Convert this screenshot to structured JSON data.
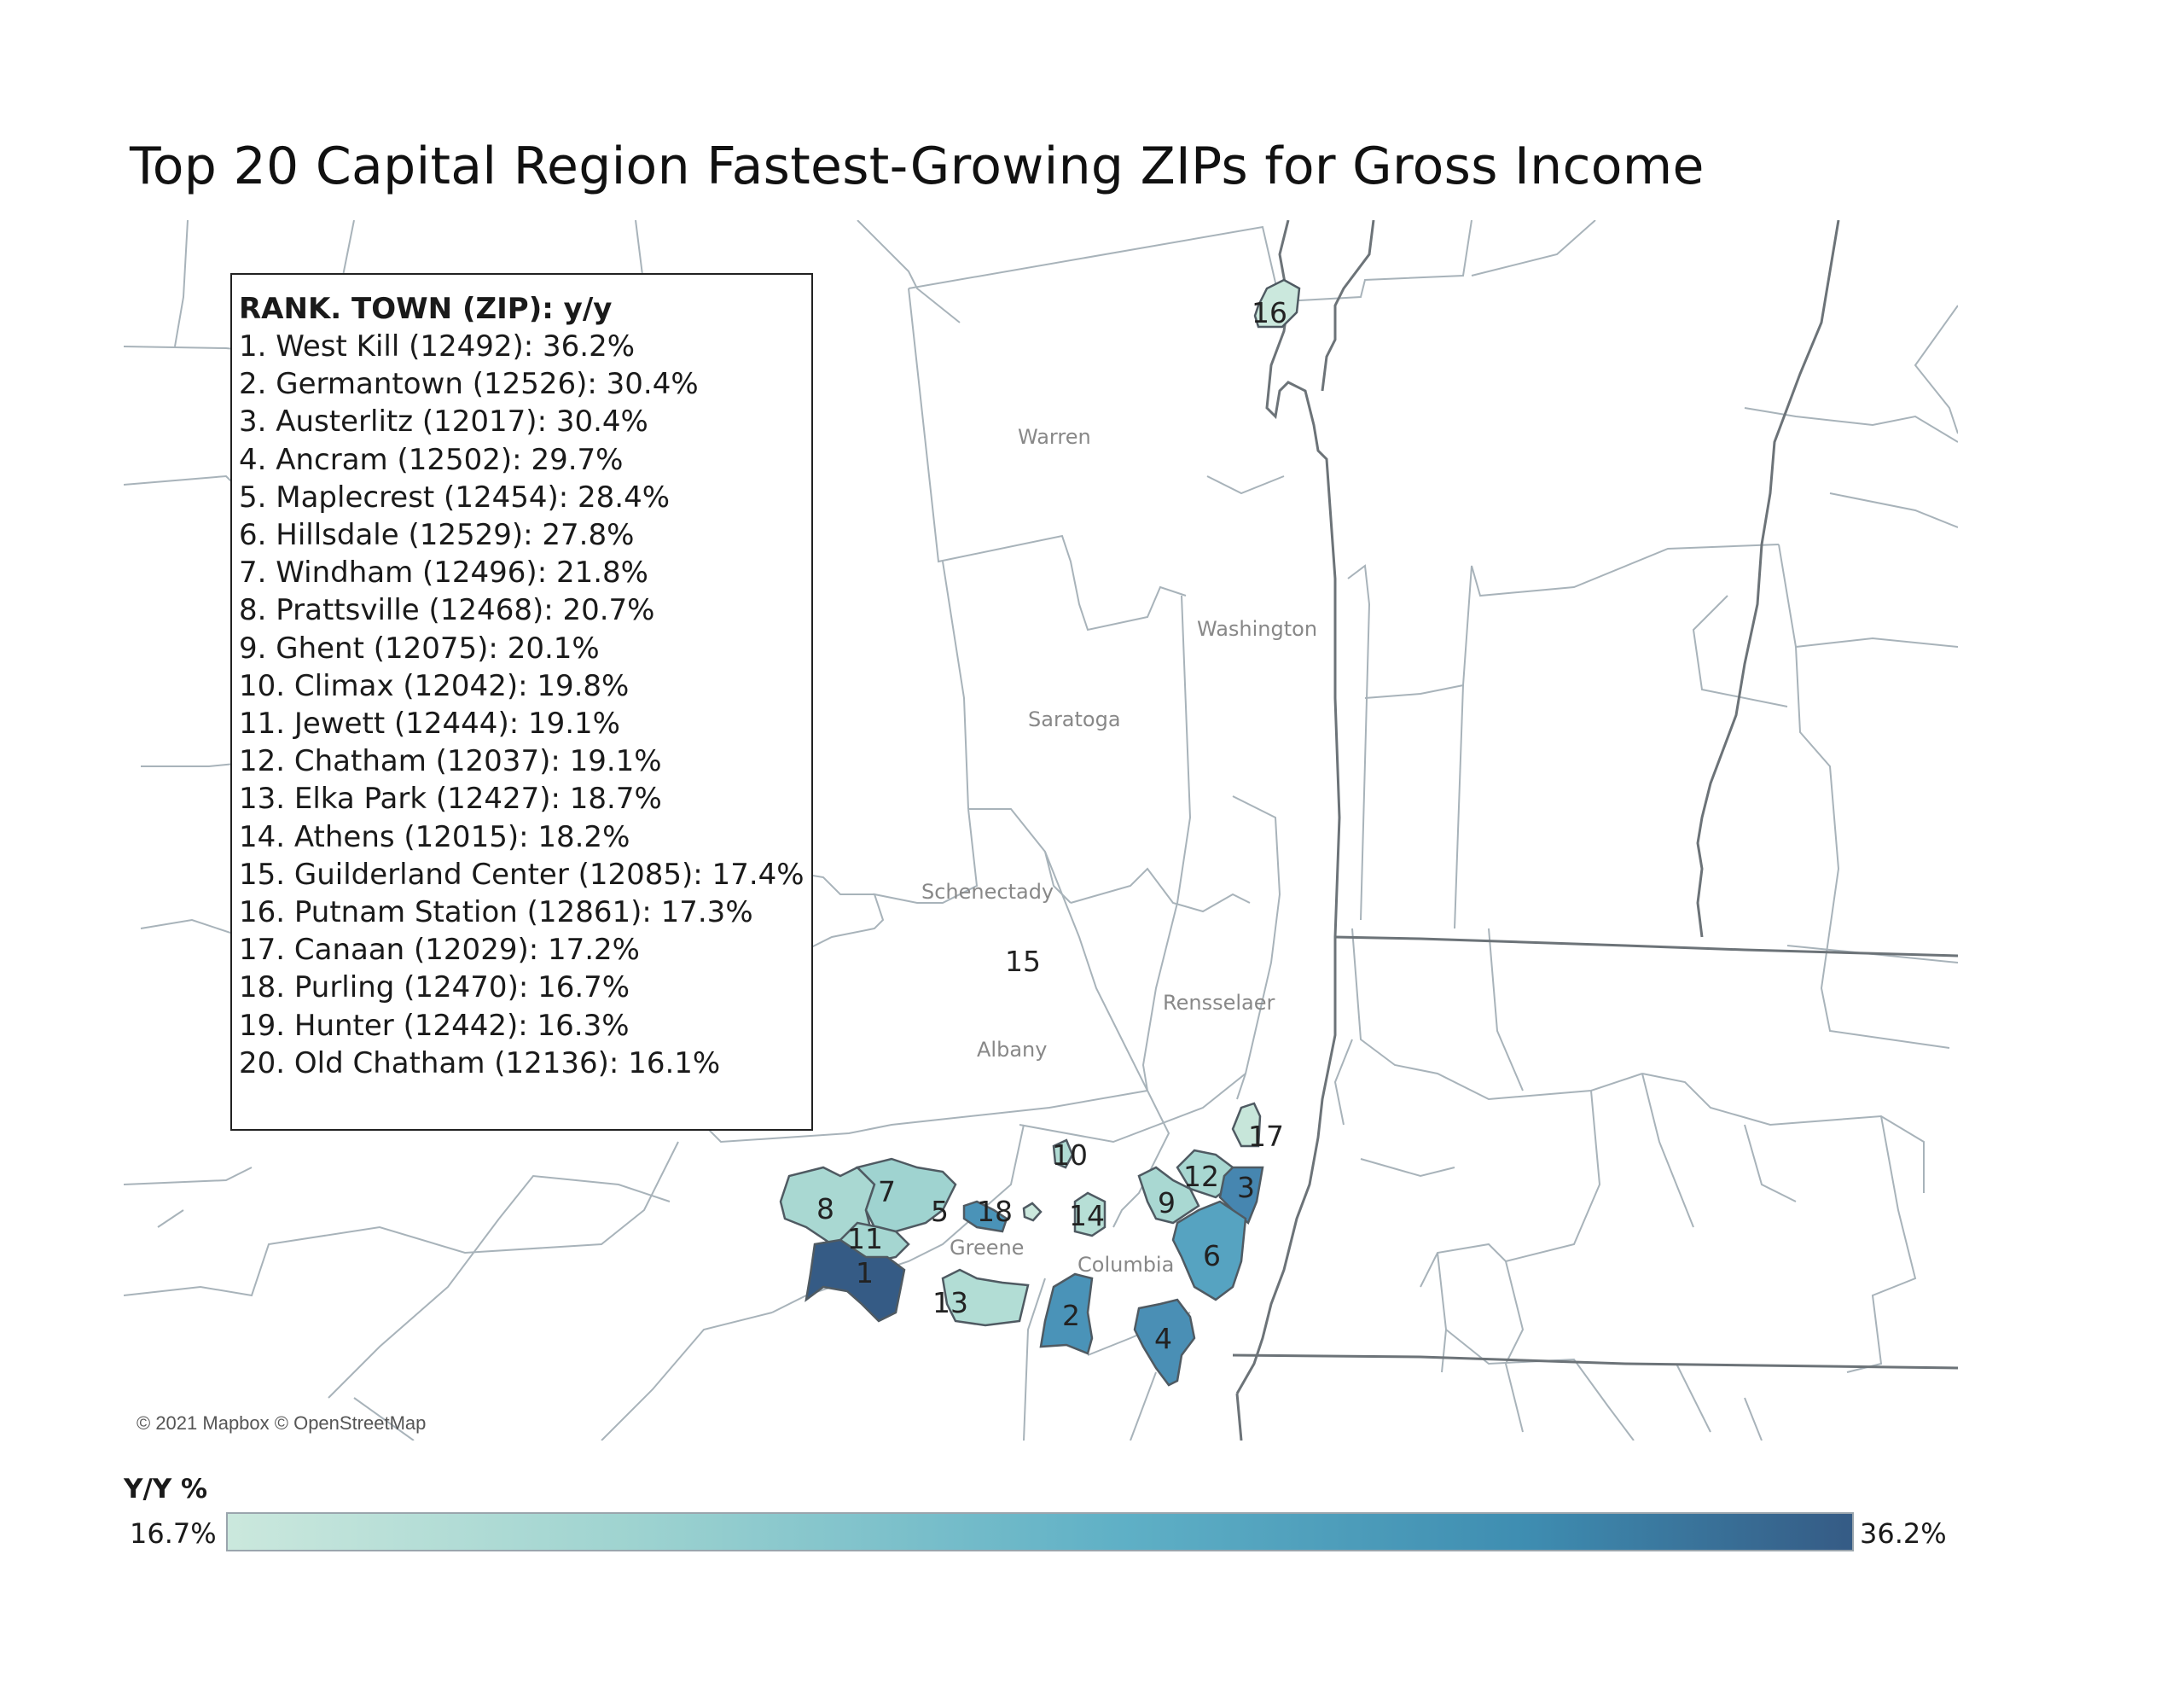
{
  "title": "Top 20 Capital Region Fastest-Growing ZIPs for Gross Income",
  "legend": {
    "title": "RANK. TOWN (ZIP): y/y",
    "items": [
      "1. West Kill (12492): 36.2%",
      "2. Germantown (12526): 30.4%",
      "3. Austerlitz (12017): 30.4%",
      "4. Ancram (12502): 29.7%",
      "5. Maplecrest (12454): 28.4%",
      "6. Hillsdale (12529): 27.8%",
      "7. Windham (12496): 21.8%",
      "8. Prattsville (12468): 20.7%",
      "9. Ghent (12075): 20.1%",
      "10. Climax (12042): 19.8%",
      "11. Jewett (12444): 19.1%",
      "12. Chatham (12037): 19.1%",
      "13. Elka Park (12427): 18.7%",
      "14. Athens (12015): 18.2%",
      "15. Guilderland Center (12085): 17.4%",
      "16. Putnam Station (12861): 17.3%",
      "17. Canaan (12029): 17.2%",
      "18. Purling (12470): 16.7%",
      "19. Hunter (12442): 16.3%",
      "20. Old Chatham (12136): 16.1%"
    ]
  },
  "counties": {
    "warren": "Warren",
    "washington": "Washington",
    "saratoga": "Saratoga",
    "schenectady": "Schenectady",
    "rensselaer": "Rensselaer",
    "albany": "Albany",
    "greene": "Greene",
    "columbia": "Columbia"
  },
  "zip_labels": {
    "z1": "1",
    "z2": "2",
    "z3": "3",
    "z4": "4",
    "z5": "5",
    "z6": "6",
    "z7": "7",
    "z8": "8",
    "z9": "9",
    "z10": "10",
    "z11": "11",
    "z12": "12",
    "z13": "13",
    "z14": "14",
    "z15": "15",
    "z16": "16",
    "z17": "17",
    "z18": "18"
  },
  "attribution": "© 2021 Mapbox © OpenStreetMap",
  "color_scale": {
    "title": "Y/Y %",
    "min_label": "16.7%",
    "max_label": "36.2%",
    "colors": [
      "#cbe8dd",
      "#9ed3d0",
      "#5fb0c6",
      "#3e8db1",
      "#355b85"
    ]
  }
}
